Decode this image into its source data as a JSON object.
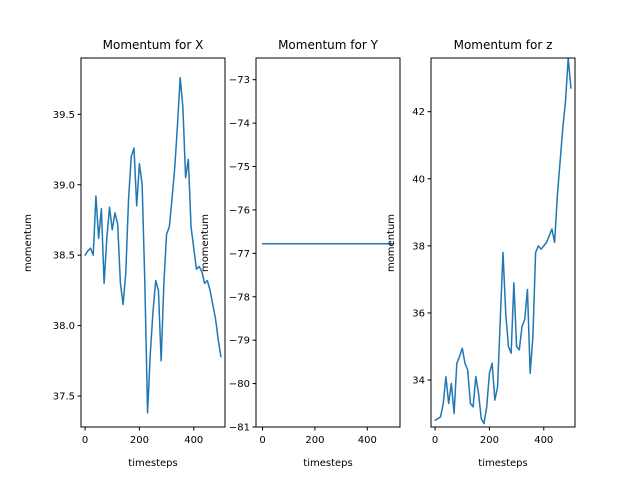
{
  "chart_data": [
    {
      "type": "line",
      "title": "Momentum for X",
      "xlabel": "timesteps",
      "ylabel": "momentum",
      "xlim": [
        -15,
        515
      ],
      "ylim": [
        37.28,
        39.9
      ],
      "xticks": [
        0,
        200,
        400
      ],
      "yticks": [
        37.5,
        38.0,
        38.5,
        39.0,
        39.5
      ],
      "ytick_labels": [
        "37.5",
        "38.0",
        "38.5",
        "39.0",
        "39.5"
      ],
      "grid": false,
      "color": "#1f77b4",
      "x": [
        0,
        10,
        20,
        30,
        40,
        50,
        60,
        70,
        80,
        90,
        100,
        110,
        120,
        130,
        140,
        150,
        160,
        170,
        180,
        190,
        200,
        210,
        220,
        230,
        240,
        250,
        260,
        270,
        280,
        290,
        300,
        310,
        320,
        330,
        340,
        350,
        360,
        370,
        380,
        390,
        400,
        410,
        420,
        430,
        440,
        450,
        460,
        470,
        480,
        490,
        500
      ],
      "y": [
        38.5,
        38.53,
        38.55,
        38.5,
        38.92,
        38.62,
        38.83,
        38.3,
        38.62,
        38.84,
        38.68,
        38.8,
        38.72,
        38.3,
        38.15,
        38.38,
        38.9,
        39.2,
        39.26,
        38.85,
        39.15,
        39.0,
        38.3,
        37.38,
        37.8,
        38.1,
        38.32,
        38.25,
        37.75,
        38.3,
        38.65,
        38.7,
        38.9,
        39.12,
        39.42,
        39.76,
        39.55,
        39.05,
        39.18,
        38.7,
        38.55,
        38.4,
        38.42,
        38.38,
        38.3,
        38.32,
        38.25,
        38.15,
        38.05,
        37.9,
        37.78
      ]
    },
    {
      "type": "line",
      "title": "Momentum for Y",
      "xlabel": "timesteps",
      "ylabel": "momentum",
      "xlim": [
        -25,
        525
      ],
      "ylim": [
        -81.0,
        -72.5
      ],
      "xticks": [
        0,
        200,
        400
      ],
      "yticks": [
        -81,
        -80,
        -79,
        -78,
        -77,
        -76,
        -75,
        -74,
        -73
      ],
      "ytick_labels": [
        "−81",
        "−80",
        "−79",
        "−78",
        "−77",
        "−76",
        "−75",
        "−74",
        "−73"
      ],
      "grid": false,
      "color": "#1f77b4",
      "x": [
        0,
        100,
        200,
        300,
        400,
        500
      ],
      "y": [
        -76.78,
        -76.78,
        -76.78,
        -76.78,
        -76.78,
        -76.78
      ]
    },
    {
      "type": "line",
      "title": "Momentum for z",
      "xlabel": "timesteps",
      "ylabel": "momentum",
      "xlim": [
        -15,
        515
      ],
      "ylim": [
        32.6,
        43.6
      ],
      "xticks": [
        0,
        200,
        400
      ],
      "yticks": [
        34,
        36,
        38,
        40,
        42
      ],
      "ytick_labels": [
        "34",
        "36",
        "38",
        "40",
        "42"
      ],
      "grid": false,
      "color": "#1f77b4",
      "x": [
        0,
        10,
        20,
        30,
        40,
        50,
        60,
        70,
        80,
        90,
        100,
        110,
        120,
        130,
        140,
        150,
        160,
        170,
        180,
        190,
        200,
        210,
        220,
        230,
        240,
        250,
        260,
        270,
        280,
        290,
        300,
        310,
        320,
        330,
        340,
        350,
        360,
        370,
        380,
        390,
        400,
        410,
        420,
        430,
        440,
        450,
        460,
        470,
        480,
        490,
        500
      ],
      "y": [
        32.8,
        32.85,
        32.9,
        33.3,
        34.1,
        33.3,
        33.9,
        33.0,
        34.5,
        34.7,
        34.95,
        34.5,
        34.3,
        33.3,
        33.2,
        34.1,
        33.6,
        32.85,
        32.7,
        33.2,
        34.2,
        34.5,
        33.4,
        33.8,
        35.8,
        37.8,
        36.0,
        35.0,
        34.8,
        36.9,
        35.0,
        34.9,
        35.6,
        35.8,
        36.7,
        34.2,
        35.3,
        37.8,
        38.0,
        37.9,
        38.0,
        38.1,
        38.3,
        38.5,
        38.1,
        39.5,
        40.5,
        41.5,
        42.3,
        43.6,
        42.7
      ]
    }
  ]
}
